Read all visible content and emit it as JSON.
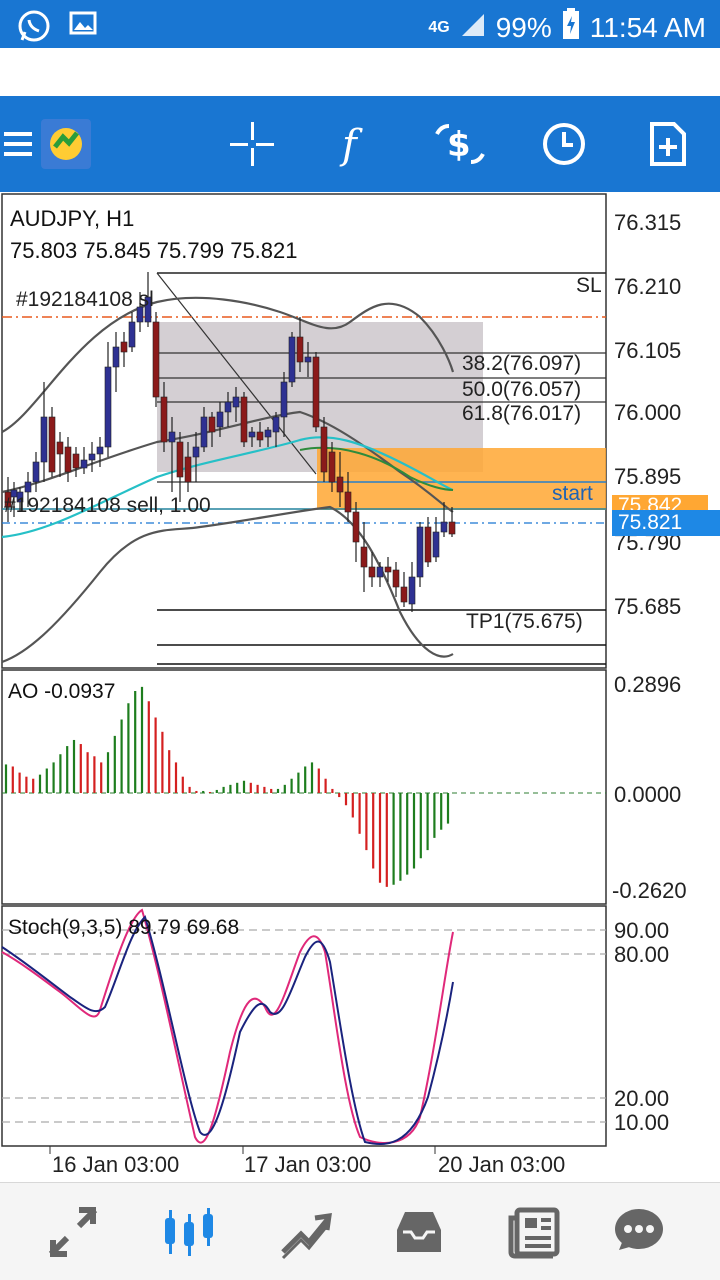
{
  "status_bar": {
    "network": "4G",
    "battery": "99%",
    "time": "11:54 AM",
    "icons": [
      "whatsapp-icon",
      "image-icon",
      "signal-icon",
      "battery-icon"
    ]
  },
  "toolbar": {
    "icons": [
      "menu-icon",
      "metatrader-logo",
      "crosshair-icon",
      "function-icon",
      "trade-icon",
      "clock-icon",
      "new-document-icon"
    ]
  },
  "chart": {
    "symbol": "AUDJPY, H1",
    "ohlc": "75.803 75.845 75.799 75.821",
    "order_label_top": "#192184108 sl",
    "order_label_bottom": "#192184108 sell, 1.00",
    "sl_label": "SL",
    "tp_label": "TP1(75.675)",
    "fib_382": "38.2(76.097)",
    "fib_500": "50.0(76.057)",
    "fib_618": "61.8(76.017)",
    "start_label": "start",
    "price_axis": [
      "76.315",
      "76.210",
      "76.105",
      "76.000",
      "75.895",
      "75.790",
      "75.685"
    ],
    "price_badge_orange": "75.842",
    "price_badge_blue": "75.821",
    "colors": {
      "bull": "#2e3192",
      "bear": "#8b1a1a",
      "orange": "#ffa733",
      "blue_badge": "#1e88e5"
    }
  },
  "ao": {
    "label": "AO -0.0937",
    "axis": [
      "0.2896",
      "0.0000",
      "-0.2620"
    ]
  },
  "stoch": {
    "label": "Stoch(9,3,5) 89.79 69.68",
    "axis": [
      "90.00",
      "80.00",
      "20.00",
      "10.00"
    ]
  },
  "time_axis": [
    "16 Jan 03:00",
    "17 Jan 03:00",
    "20 Jan 03:00"
  ],
  "bottom_nav": {
    "items": [
      "quotes-icon",
      "chart-icon",
      "trade-icon",
      "history-icon",
      "news-icon",
      "chat-icon"
    ],
    "active": "chart-icon"
  }
}
